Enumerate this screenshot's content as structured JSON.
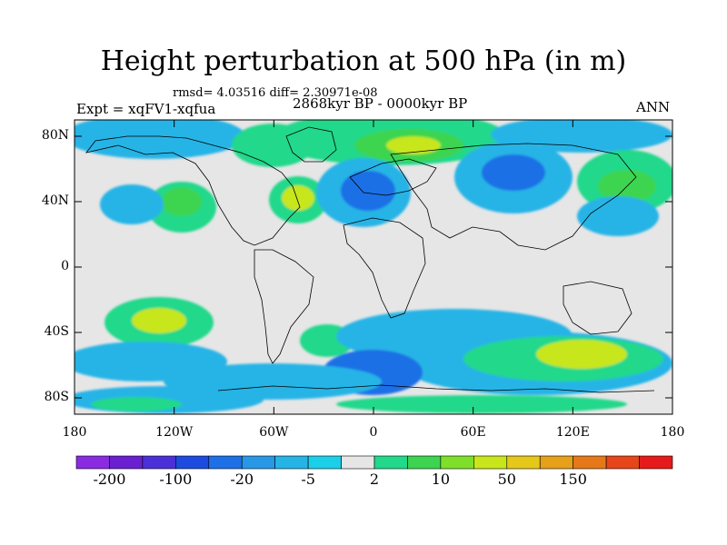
{
  "header": {
    "title": "Height perturbation at 500 hPa (in m)",
    "subtitle": "rmsd= 4.03516 diff= 2.30971e-08",
    "left_label": "Expt = xqFV1-xqfua",
    "center_label": "2868kyr BP - 0000kyr BP",
    "right_label": "ANN"
  },
  "axes": {
    "lat_labels": [
      "80N",
      "40N",
      "0",
      "40S",
      "80S"
    ],
    "lat_values": [
      80,
      40,
      0,
      -40,
      -80
    ],
    "lon_labels": [
      "180",
      "120W",
      "60W",
      "0",
      "60E",
      "120E",
      "180"
    ],
    "lon_values": [
      -180,
      -120,
      -60,
      0,
      60,
      120,
      180
    ],
    "lat_range": [
      -90,
      90
    ],
    "lon_range": [
      -180,
      180
    ]
  },
  "colorbar": {
    "colors": [
      "#8a2be2",
      "#6a1fd1",
      "#4b30d8",
      "#1d4be0",
      "#1e70e6",
      "#2898e6",
      "#26b4e6",
      "#1ccfe8",
      "#e6e6e6",
      "#22d88a",
      "#3cd450",
      "#7ee02a",
      "#c8e61a",
      "#e6c81a",
      "#e6a01a",
      "#e6781a",
      "#e6461a",
      "#e61a1a"
    ],
    "labels": [
      "-200",
      "-100",
      "-20",
      "-5",
      "2",
      "10",
      "50",
      "150"
    ],
    "label_boxes": [
      1,
      3,
      5,
      7,
      9,
      11,
      13,
      15
    ]
  },
  "colors": {
    "background": "#e6e6e6",
    "coast": "#000000"
  }
}
